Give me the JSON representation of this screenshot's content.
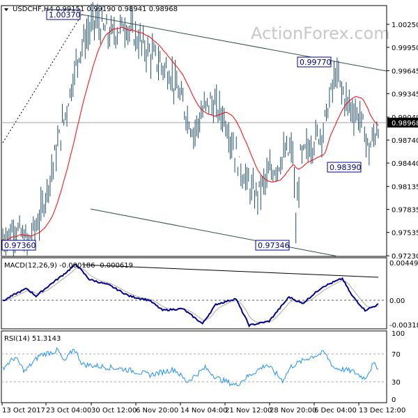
{
  "header": {
    "symbol": "USDCHF,H4",
    "ohlc": "0.99151 0.99190 0.98941 0.98968"
  },
  "watermark": "ActionForex.com",
  "chart_data": [
    {
      "type": "candlestick",
      "title": "USDCHF,H4",
      "ylim": [
        0.9723,
        1.004
      ],
      "y_ticks": [
        "1.00250",
        "0.99950",
        "0.99645",
        "0.99345",
        "0.99040",
        "0.98740",
        "0.98440",
        "0.98135",
        "0.97835",
        "0.97535",
        "0.97230"
      ],
      "y_tick_values": [
        1.0025,
        0.9995,
        0.99645,
        0.99345,
        0.9904,
        0.9874,
        0.9844,
        0.98135,
        0.97835,
        0.97535,
        0.9723
      ],
      "current_price": "0.98968",
      "x_ticks": [
        "13 Oct 2017",
        "23 Oct 04:00",
        "30 Oct 12:00",
        "6 Nov 20:00",
        "14 Nov 04:00",
        "21 Nov 12:00",
        "28 Nov 20:00",
        "6 Dec 04:00",
        "13 Dec 12:00"
      ],
      "price_path_approx": [
        [
          0,
          0.9745
        ],
        [
          8,
          0.976
        ],
        [
          16,
          0.974
        ],
        [
          24,
          0.977
        ],
        [
          40,
          0.99
        ],
        [
          50,
          0.999
        ],
        [
          60,
          1.003
        ],
        [
          70,
          1.001
        ],
        [
          80,
          1.0025
        ],
        [
          95,
          0.999
        ],
        [
          110,
          0.996
        ],
        [
          125,
          0.9885
        ],
        [
          135,
          0.9925
        ],
        [
          145,
          0.9905
        ],
        [
          155,
          0.984
        ],
        [
          165,
          0.98
        ],
        [
          175,
          0.983
        ],
        [
          185,
          0.9855
        ],
        [
          190,
          0.986
        ],
        [
          192,
          0.976
        ],
        [
          195,
          0.985
        ],
        [
          210,
          0.989
        ],
        [
          218,
          0.996
        ],
        [
          225,
          0.9925
        ],
        [
          235,
          0.99
        ],
        [
          240,
          0.986
        ],
        [
          246,
          0.9895
        ]
      ],
      "annotations": [
        "1.00370",
        "0.99770",
        "0.98390",
        "0.97346",
        "0.97360"
      ],
      "series": [
        {
          "name": "",
          "color": "#ff0000",
          "kind": "moving average"
        }
      ]
    },
    {
      "type": "line",
      "title": "MACD(12,26,9) -0.000186 -0.000619",
      "y_ticks": [
        "0.004493",
        "0.00",
        "-0.003186"
      ],
      "ylim": [
        -0.003186,
        0.004493
      ],
      "macd_path_approx": [
        [
          0,
          -0.0001
        ],
        [
          10,
          0.0008
        ],
        [
          18,
          0.0014
        ],
        [
          25,
          0.0005
        ],
        [
          35,
          0.0018
        ],
        [
          45,
          0.003
        ],
        [
          55,
          0.0043
        ],
        [
          65,
          0.0025
        ],
        [
          80,
          0.0018
        ],
        [
          95,
          0.0005
        ],
        [
          110,
          0.0
        ],
        [
          120,
          -0.0012
        ],
        [
          135,
          -0.001
        ],
        [
          150,
          -0.0028
        ],
        [
          160,
          -0.0005
        ],
        [
          175,
          0.0002
        ],
        [
          185,
          -0.003
        ],
        [
          200,
          -0.0025
        ],
        [
          215,
          0.0004
        ],
        [
          225,
          -0.0004
        ],
        [
          240,
          0.0016
        ],
        [
          255,
          0.0026
        ],
        [
          262,
          0.0006
        ],
        [
          272,
          -0.0012
        ],
        [
          282,
          -0.0005
        ]
      ]
    },
    {
      "type": "line",
      "title": "RSI(14) 51.3143",
      "y_ticks": [
        "100",
        "70",
        "30",
        "0"
      ],
      "ylim": [
        0,
        100
      ],
      "rsi_path_approx": [
        [
          0,
          50
        ],
        [
          10,
          65
        ],
        [
          18,
          45
        ],
        [
          30,
          68
        ],
        [
          45,
          75
        ],
        [
          50,
          58
        ],
        [
          58,
          78
        ],
        [
          65,
          55
        ],
        [
          80,
          52
        ],
        [
          100,
          48
        ],
        [
          120,
          40
        ],
        [
          140,
          48
        ],
        [
          150,
          30
        ],
        [
          165,
          50
        ],
        [
          175,
          35
        ],
        [
          190,
          25
        ],
        [
          200,
          38
        ],
        [
          215,
          55
        ],
        [
          228,
          32
        ],
        [
          235,
          52
        ],
        [
          250,
          65
        ],
        [
          262,
          72
        ],
        [
          270,
          50
        ],
        [
          285,
          45
        ],
        [
          295,
          35
        ],
        [
          302,
          55
        ],
        [
          306,
          51
        ]
      ]
    }
  ]
}
